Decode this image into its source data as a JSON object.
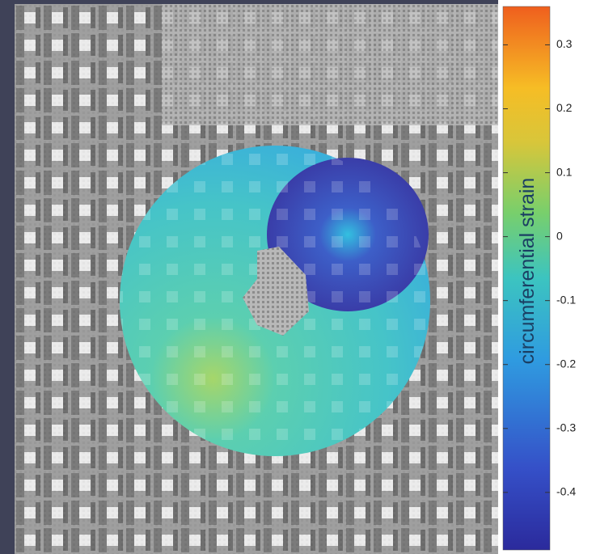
{
  "colorbar": {
    "label": "circumferential strain",
    "lim": [
      -0.49,
      0.36
    ],
    "ticks": [
      0.3,
      0.2,
      0.1,
      0,
      -0.1,
      -0.2,
      -0.3,
      -0.4
    ]
  }
}
